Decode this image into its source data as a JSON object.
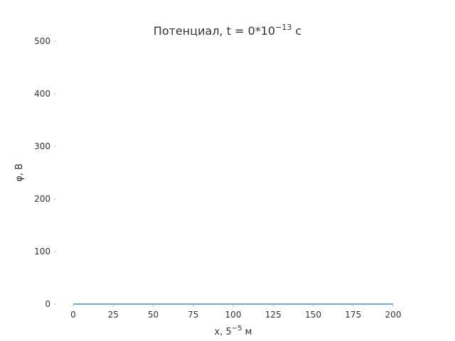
{
  "chart_data": {
    "type": "line",
    "title": "Потенциал, t = 0*10",
    "title_exponent": "−13",
    "title_suffix": " с",
    "xlabel": "x, 5",
    "xlabel_exponent": "−5",
    "xlabel_suffix": " м",
    "ylabel": "φ, В",
    "xlim": [
      0,
      200
    ],
    "ylim": [
      0,
      500
    ],
    "xticks": [
      0,
      25,
      50,
      75,
      100,
      125,
      150,
      175,
      200
    ],
    "yticks": [
      0,
      100,
      200,
      300,
      400,
      500
    ],
    "grid": false,
    "series": [
      {
        "x": [
          0,
          200
        ],
        "values": [
          0,
          0
        ],
        "color": "#1f77b4"
      }
    ]
  }
}
